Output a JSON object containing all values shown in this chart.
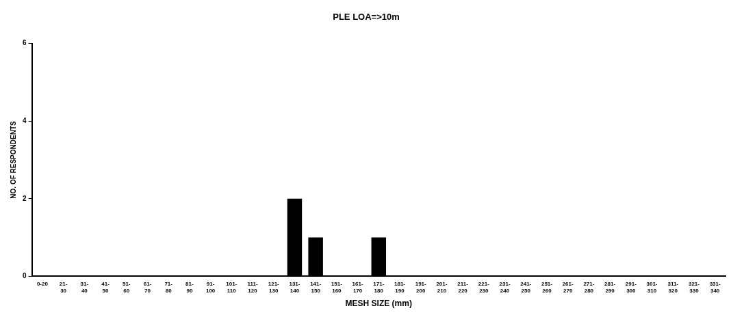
{
  "chart_data": {
    "type": "bar",
    "title": "PLE LOA=>10m",
    "xlabel": "MESH SIZE (mm)",
    "ylabel": "NO. OF RESPONDENTS",
    "categories": [
      "0-20",
      "21-30",
      "31-40",
      "41-50",
      "51-60",
      "61-70",
      "71-80",
      "81-90",
      "91-100",
      "101-110",
      "111-120",
      "121-130",
      "131-140",
      "141-150",
      "151-160",
      "161-170",
      "171-180",
      "181-190",
      "191-200",
      "201-210",
      "211-220",
      "221-230",
      "231-240",
      "241-250",
      "251-260",
      "261-270",
      "271-280",
      "281-290",
      "291-300",
      "301-310",
      "311-320",
      "321-330",
      "331-340"
    ],
    "values": [
      0,
      0,
      0,
      0,
      0,
      0,
      0,
      0,
      0,
      0,
      0,
      0,
      2,
      1,
      0,
      0,
      1,
      0,
      0,
      0,
      0,
      0,
      0,
      0,
      0,
      0,
      0,
      0,
      0,
      0,
      0,
      0,
      0
    ],
    "color": "#000000",
    "ylim": [
      0,
      6
    ],
    "yticks": [
      0,
      2,
      4,
      6
    ],
    "grid": false,
    "legend": false
  }
}
